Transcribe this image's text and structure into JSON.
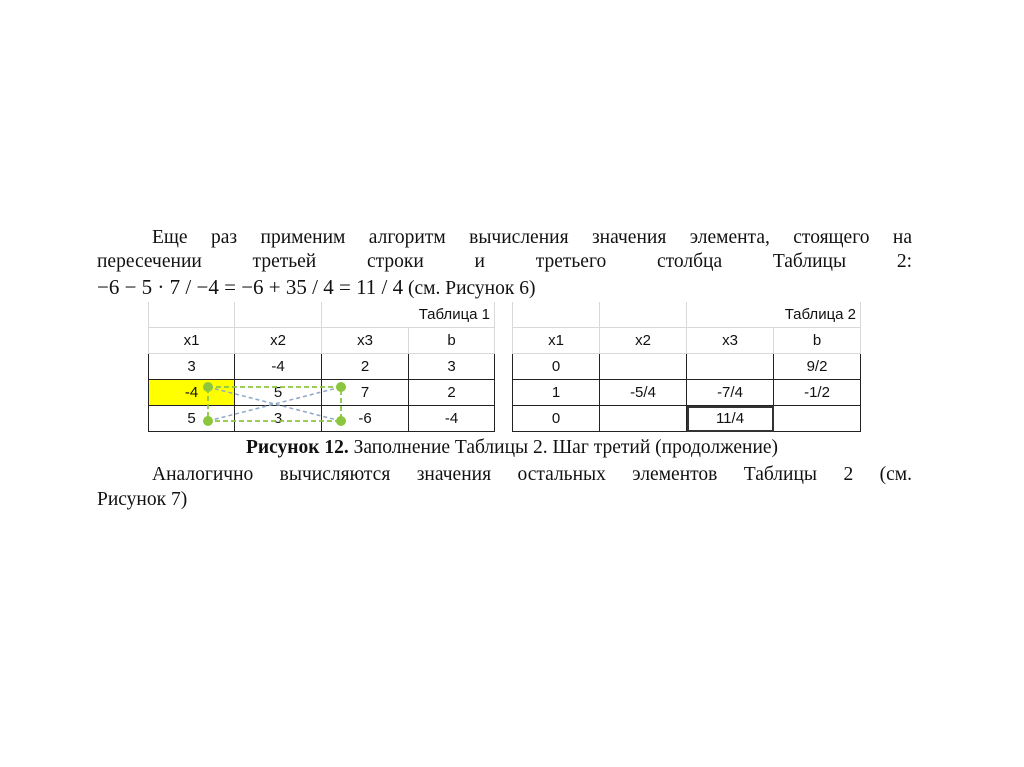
{
  "paragraph1": {
    "line1": "Еще раз применим алгоритм вычисления значения элемента, стоящего на",
    "line2": "пересечении третьей строки и третьего столбца Таблицы 2:",
    "math": "−6 − 5 · 7 / −4 = −6 + 35 / 4 = 11 / 4",
    "ref": "(см. Рисунок 6)"
  },
  "table1": {
    "title": "Таблица 1",
    "headers": [
      "x1",
      "x2",
      "x3",
      "b"
    ],
    "rows": [
      [
        "3",
        "-4",
        "2",
        "3"
      ],
      [
        "-4",
        "5",
        "7",
        "2"
      ],
      [
        "5",
        "3",
        "-6",
        "-4"
      ]
    ],
    "highlight_color": "#ffff00"
  },
  "table2": {
    "title": "Таблица 2",
    "headers": [
      "x1",
      "x2",
      "x3",
      "b"
    ],
    "rows": [
      [
        "0",
        "",
        "",
        "9/2"
      ],
      [
        "1",
        "-5/4",
        "-7/4",
        "-1/2"
      ],
      [
        "0",
        "",
        "11/4",
        ""
      ]
    ]
  },
  "caption": {
    "bold": "Рисунок 12.",
    "text": " Заполнение Таблицы 2. Шаг третий (продолжение)"
  },
  "paragraph2": {
    "line1": "Аналогично вычисляются значения остальных элементов Таблицы 2 (см.",
    "line2": "Рисунок 7)"
  },
  "colors": {
    "rectangle": "#8cc63f",
    "diagonals": "#8fa8c8"
  }
}
